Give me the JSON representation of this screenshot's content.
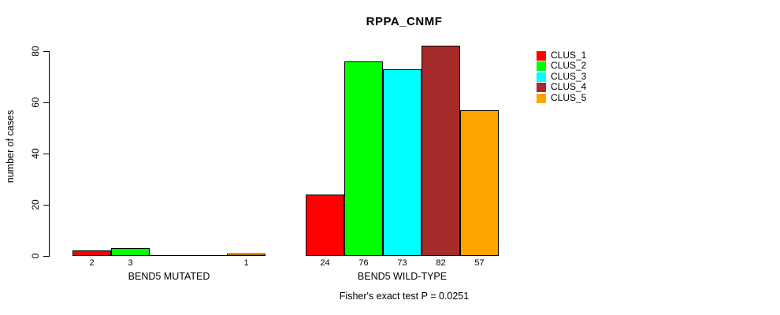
{
  "chart_data": {
    "type": "bar",
    "title": "RPPA_CNMF",
    "ylabel": "number of cases",
    "xlabel": "",
    "ylim": [
      0,
      82
    ],
    "yticks": [
      0,
      20,
      40,
      60,
      80
    ],
    "grid": false,
    "legend_position": "top-right",
    "legend": [
      {
        "label": "CLUS_1",
        "color": "#FF0000"
      },
      {
        "label": "CLUS_2",
        "color": "#00FF00"
      },
      {
        "label": "CLUS_3",
        "color": "#00FFFF"
      },
      {
        "label": "CLUS_4",
        "color": "#A52A2A"
      },
      {
        "label": "CLUS_5",
        "color": "#FFA500"
      }
    ],
    "groups": [
      {
        "label": "BEND5 MUTATED",
        "values": [
          2,
          3,
          0,
          0,
          1
        ],
        "bar_labels": [
          "2",
          "3",
          "",
          "",
          "1"
        ]
      },
      {
        "label": "BEND5 WILD-TYPE",
        "values": [
          24,
          76,
          73,
          82,
          57
        ],
        "bar_labels": [
          "24",
          "76",
          "73",
          "82",
          "57"
        ]
      }
    ],
    "annotation": "Fisher's exact test P = 0.0251"
  }
}
